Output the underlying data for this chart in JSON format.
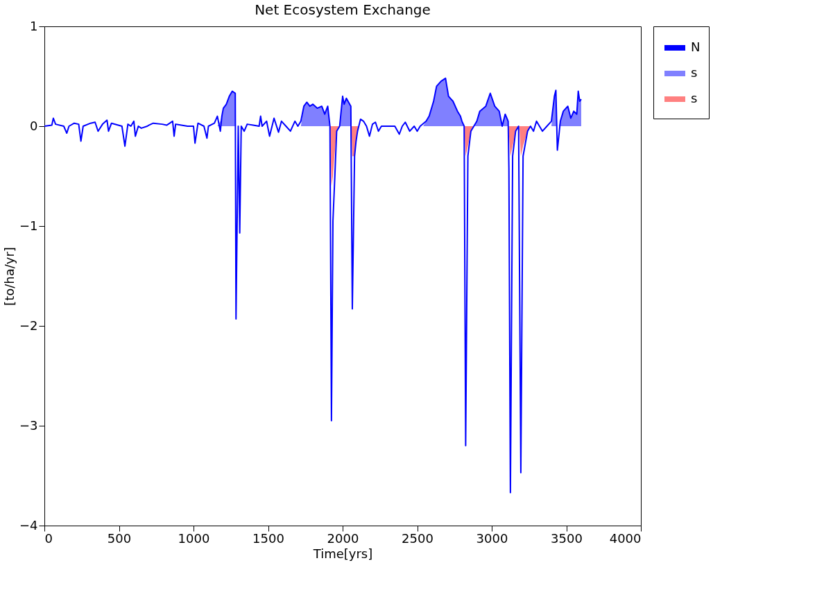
{
  "chart_data": {
    "type": "line",
    "title": "Net Ecosystem Exchange",
    "xlabel": "Time[yrs]",
    "ylabel": "[to/ha/yr]",
    "xlim": [
      0,
      4000
    ],
    "xticks": [
      0,
      500,
      1000,
      1500,
      2000,
      2500,
      3000,
      3500,
      4000
    ],
    "ylim": [
      -4,
      1
    ],
    "yticks": [
      -4,
      -3,
      -2,
      -1,
      0,
      1
    ],
    "grid": false,
    "legend": "right",
    "series": [
      {
        "name": "N",
        "type": "line",
        "color": "#0000ff",
        "x": [
          0,
          50,
          60,
          75,
          130,
          150,
          165,
          200,
          230,
          245,
          260,
          310,
          340,
          360,
          390,
          420,
          430,
          450,
          520,
          540,
          560,
          580,
          600,
          610,
          630,
          650,
          690,
          700,
          730,
          790,
          820,
          860,
          870,
          880,
          960,
          1000,
          1010,
          1030,
          1070,
          1090,
          1100,
          1140,
          1160,
          1180,
          1190,
          1200,
          1220,
          1240,
          1260,
          1280,
          1285,
          1300,
          1310,
          1320,
          1340,
          1360,
          1400,
          1440,
          1450,
          1460,
          1490,
          1510,
          1540,
          1570,
          1590,
          1620,
          1650,
          1680,
          1700,
          1720,
          1740,
          1760,
          1780,
          1800,
          1830,
          1860,
          1880,
          1900,
          1915,
          1925,
          1935,
          1945,
          1960,
          1980,
          1990,
          2000,
          2010,
          2025,
          2040,
          2055,
          2065,
          2080,
          2090,
          2100,
          2120,
          2140,
          2160,
          2180,
          2200,
          2220,
          2240,
          2260,
          2300,
          2350,
          2380,
          2400,
          2420,
          2450,
          2480,
          2500,
          2520,
          2560,
          2580,
          2610,
          2630,
          2660,
          2690,
          2710,
          2740,
          2770,
          2790,
          2800,
          2815,
          2825,
          2840,
          2860,
          2880,
          2900,
          2920,
          2960,
          2990,
          3020,
          3050,
          3070,
          3090,
          3110,
          3115,
          3125,
          3140,
          3160,
          3180,
          3195,
          3210,
          3240,
          3260,
          3280,
          3300,
          3320,
          3340,
          3370,
          3400,
          3420,
          3430,
          3440,
          3460,
          3480,
          3510,
          3530,
          3550,
          3570,
          3580,
          3590,
          3600
        ],
        "values": [
          0,
          0.01,
          0.08,
          0.02,
          0,
          -0.07,
          0,
          0.03,
          0.02,
          -0.15,
          0,
          0.03,
          0.04,
          -0.05,
          0.02,
          0.06,
          -0.05,
          0.03,
          0,
          -0.2,
          0.02,
          0,
          0.05,
          -0.1,
          0,
          -0.02,
          0,
          0.01,
          0.03,
          0.02,
          0.01,
          0.05,
          -0.1,
          0.02,
          0,
          0,
          -0.17,
          0.03,
          0,
          -0.12,
          0,
          0.03,
          0.1,
          -0.05,
          0.1,
          0.18,
          0.22,
          0.3,
          0.35,
          0.33,
          -1.93,
          0,
          -1.07,
          0,
          -0.05,
          0.02,
          0.01,
          0,
          0.1,
          0,
          0.05,
          -0.1,
          0.08,
          -0.06,
          0.05,
          0,
          -0.05,
          0.05,
          0,
          0.05,
          0.2,
          0.24,
          0.2,
          0.22,
          0.18,
          0.2,
          0.12,
          0.2,
          0,
          -2.95,
          -0.95,
          -0.6,
          -0.05,
          0,
          0.15,
          0.3,
          0.22,
          0.28,
          0.24,
          0.2,
          -1.83,
          -0.3,
          -0.15,
          -0.05,
          0.07,
          0.05,
          0,
          -0.1,
          0.02,
          0.04,
          -0.05,
          0,
          0,
          0,
          -0.08,
          0,
          0.04,
          -0.05,
          0,
          -0.05,
          0,
          0.05,
          0.1,
          0.25,
          0.4,
          0.45,
          0.48,
          0.3,
          0.25,
          0.15,
          0.1,
          0.05,
          0,
          -3.2,
          -0.3,
          -0.05,
          0,
          0.05,
          0.15,
          0.2,
          0.33,
          0.2,
          0.15,
          0,
          0.12,
          0.05,
          -0.42,
          -3.67,
          -0.3,
          -0.05,
          0,
          -3.47,
          -0.3,
          -0.05,
          0,
          -0.05,
          0.05,
          0,
          -0.05,
          0,
          0.05,
          0.3,
          0.36,
          -0.24,
          0.05,
          0.15,
          0.2,
          0.08,
          0.15,
          0.12,
          0.35,
          0.25,
          0.27
        ]
      },
      {
        "name": "s",
        "type": "area",
        "color": "#8080ff",
        "x": [
          1160,
          1180,
          1190,
          1200,
          1220,
          1240,
          1260,
          1280,
          1284,
          null,
          1720,
          1740,
          1760,
          1780,
          1800,
          1830,
          1860,
          1880,
          1900,
          1915,
          null,
          1980,
          1990,
          2000,
          2010,
          2025,
          2040,
          2055,
          2060,
          null,
          2540,
          2560,
          2580,
          2610,
          2630,
          2660,
          2690,
          2710,
          2740,
          2770,
          2790,
          2800,
          2815,
          null,
          2880,
          2900,
          2920,
          2960,
          2990,
          3020,
          3050,
          3070,
          3090,
          3110,
          3112,
          null,
          3400,
          3420,
          3430,
          3435,
          null,
          3450,
          3460,
          3480,
          3510,
          3530,
          3550,
          3570,
          3580,
          3590,
          3600
        ],
        "values": [
          0,
          0.05,
          0.1,
          0.18,
          0.22,
          0.3,
          0.35,
          0.33,
          0,
          null,
          0,
          0.2,
          0.24,
          0.2,
          0.22,
          0.18,
          0.2,
          0.12,
          0.2,
          0,
          null,
          0,
          0.15,
          0.3,
          0.22,
          0.28,
          0.24,
          0.2,
          0,
          null,
          0,
          0.05,
          0.1,
          0.25,
          0.4,
          0.45,
          0.48,
          0.3,
          0.25,
          0.15,
          0.1,
          0.05,
          0,
          null,
          0,
          0.05,
          0.15,
          0.2,
          0.33,
          0.2,
          0.15,
          0,
          0.12,
          0.05,
          0,
          null,
          0,
          0.3,
          0.36,
          0,
          null,
          0,
          0.05,
          0.15,
          0.2,
          0.08,
          0.15,
          0.12,
          0.35,
          0.25,
          0.27
        ]
      },
      {
        "name": "s",
        "type": "area",
        "color": "#ff8080",
        "x": [
          1915,
          1925,
          1935,
          1945,
          1960,
          1980,
          null,
          2058,
          2065,
          2080,
          2090,
          2100,
          2110,
          null,
          2815,
          2825,
          2840,
          2860,
          2880,
          null,
          3112,
          3125,
          3140,
          3160,
          3180,
          null,
          3185,
          3195,
          3210,
          3240,
          3260
        ],
        "values": [
          0,
          -0.6,
          -0.5,
          -0.3,
          -0.05,
          0,
          null,
          0,
          -0.3,
          -0.3,
          -0.15,
          -0.05,
          0,
          null,
          0,
          -0.3,
          -0.2,
          -0.05,
          0,
          null,
          0,
          -0.3,
          -0.2,
          -0.05,
          0,
          null,
          0,
          -0.3,
          -0.2,
          -0.05,
          0
        ]
      }
    ]
  }
}
